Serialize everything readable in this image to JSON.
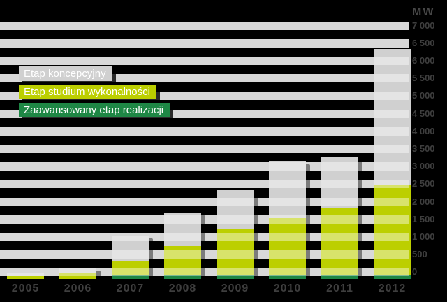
{
  "chart_data": {
    "type": "bar",
    "stacked": true,
    "title": "",
    "categories": [
      "2005",
      "2006",
      "2007",
      "2008",
      "2009",
      "2010",
      "2011",
      "2012"
    ],
    "series": [
      {
        "name": "Zaawansowany etap realizacji",
        "color": "#1e8745",
        "values": [
          0,
          0,
          120,
          100,
          100,
          100,
          120,
          90
        ]
      },
      {
        "name": "Etap studium wykonalności",
        "color": "#bccf00",
        "values": [
          80,
          180,
          380,
          830,
          1300,
          1620,
          1900,
          2560
        ]
      },
      {
        "name": "Etap koncepcyjny",
        "color": "#d0d0d0",
        "values": [
          80,
          140,
          730,
          950,
          1120,
          1620,
          1450,
          3870
        ]
      }
    ],
    "y_axis": {
      "unit": "MW",
      "min": 0,
      "max": 7000,
      "step": 500,
      "tick_labels": [
        "7 000",
        "6 500",
        "6 000",
        "5 500",
        "5 000",
        "4 500",
        "4 000",
        "3 500",
        "3 000",
        "2 500",
        "2 000",
        "1 500",
        "1 000",
        "500",
        "0"
      ]
    },
    "xlabel": "",
    "ylabel": "MW",
    "grid": "horizontal-bands",
    "legend_position": "top-left",
    "colors": {
      "background": "#000000",
      "gridline": "#cccccc",
      "axis_text": "#3e3e3e",
      "legend_text": "#ffffff"
    }
  }
}
